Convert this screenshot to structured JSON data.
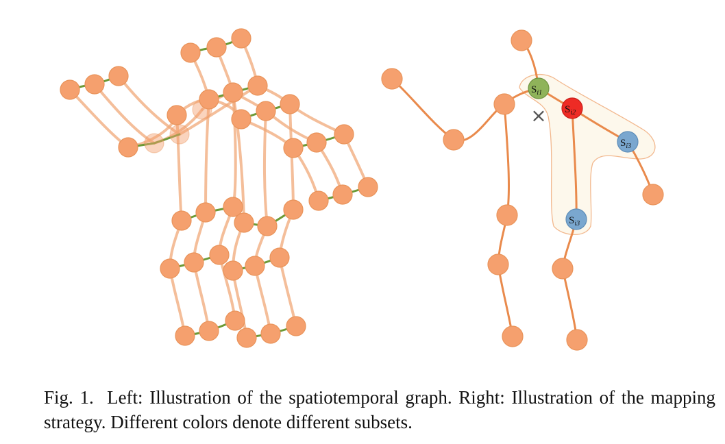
{
  "caption": {
    "text": "Fig. 1.  Left: Illustration of the spatiotemporal graph. Right: Illustration of the mapping strategy. Different colors denote different subsets."
  },
  "right_graph": {
    "labels": [
      {
        "base": "S",
        "sub": "i1"
      },
      {
        "base": "S",
        "sub": "i2"
      },
      {
        "base": "S",
        "sub": "i3"
      },
      {
        "base": "S",
        "sub": "i3"
      }
    ],
    "center_mark": "×"
  },
  "colors": {
    "joint": "#f5a06e",
    "bone": "#e98a4c",
    "temporal_edge": "#6c9a36",
    "subset_1": "#8fb35a",
    "subset_2": "#ee2b25",
    "subset_3": "#7aa7cf",
    "subset_region": "#fdf8ec"
  }
}
